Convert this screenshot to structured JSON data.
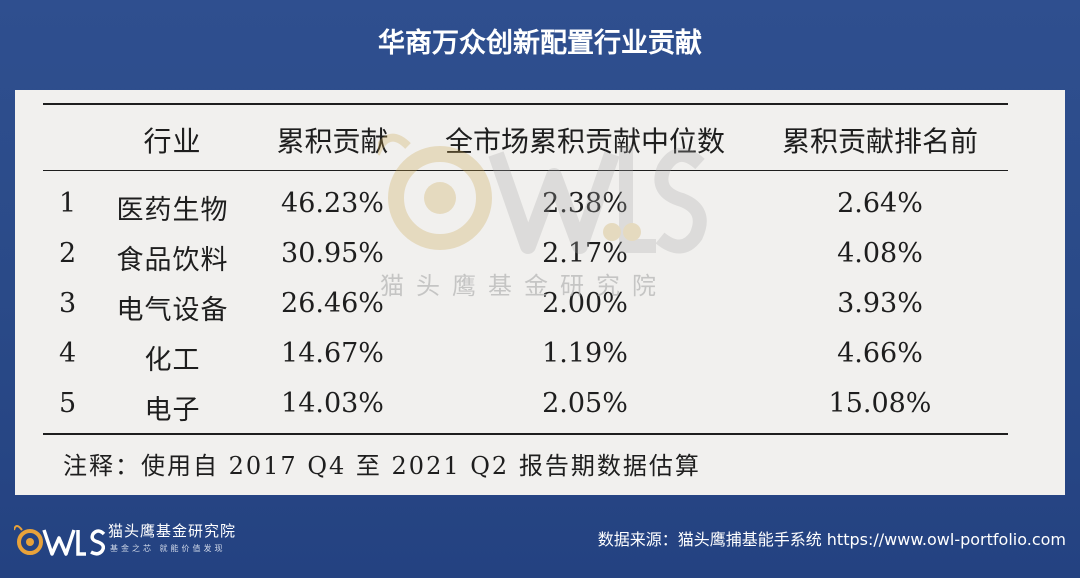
{
  "title": "华商万众创新配置行业贡献",
  "table": {
    "headers": [
      "行业",
      "累积贡献",
      "全市场累积贡献中位数",
      "累积贡献排名前"
    ],
    "rows": [
      {
        "num": "1",
        "industry": "医药生物",
        "cumulative": "46.23%",
        "median": "2.38%",
        "rank": "2.64%"
      },
      {
        "num": "2",
        "industry": "食品饮料",
        "cumulative": "30.95%",
        "median": "2.17%",
        "rank": "4.08%"
      },
      {
        "num": "3",
        "industry": "电气设备",
        "cumulative": "26.46%",
        "median": "2.00%",
        "rank": "3.93%"
      },
      {
        "num": "4",
        "industry": "化工",
        "cumulative": "14.67%",
        "median": "1.19%",
        "rank": "4.66%"
      },
      {
        "num": "5",
        "industry": "电子",
        "cumulative": "14.03%",
        "median": "2.05%",
        "rank": "15.08%"
      }
    ],
    "note": "注释：使用自 2017 Q4 至 2021 Q2 报告期数据估算"
  },
  "watermark": {
    "logo": "OWLS",
    "text": "猫头鹰基金研究院"
  },
  "footer": {
    "logo": "OWLS",
    "brand_name": "猫头鹰基金研究院",
    "slogan": "基金之芯 就能价值发现",
    "source": "数据来源：猫头鹰捕基能手系统 https://www.owl-portfolio.com"
  },
  "colors": {
    "background": "#2a4a88",
    "panel": "#f1f0ee",
    "text": "#1e1e1e",
    "accent": "#e8a23a"
  }
}
